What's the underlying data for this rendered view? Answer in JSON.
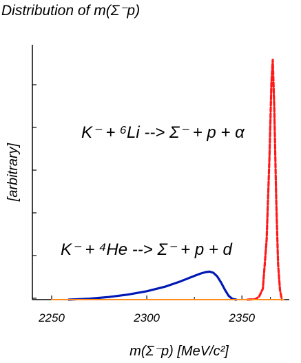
{
  "chart_data": {
    "type": "line",
    "title": "Distribution of  m(Σ⁻p)",
    "xlabel": "m(Σ⁻p)  [MeV/c²]",
    "ylabel": "[arbitrary]",
    "xlim": [
      2250,
      2372
    ],
    "ylim": [
      0,
      1.0
    ],
    "x_ticks": [
      2250,
      2300,
      2350
    ],
    "y_ticks_labeled": false,
    "grid": false,
    "annotations": [
      {
        "text": "K⁻ + ⁶Li --> Σ⁻ + p + α"
      },
      {
        "text": "K⁻ + ⁴He --> Σ⁻ + p + d"
      }
    ],
    "series": [
      {
        "label": "K⁻ + ⁴He --> Σ⁻ + p + d",
        "color": "#0018b4",
        "style": "solid",
        "x": [
          2259,
          2270,
          2280,
          2290,
          2300,
          2310,
          2318,
          2324,
          2328,
          2331,
          2333,
          2335,
          2337,
          2339,
          2341,
          2343,
          2345,
          2347
        ],
        "y": [
          0.0,
          0.004,
          0.011,
          0.021,
          0.035,
          0.055,
          0.077,
          0.096,
          0.108,
          0.115,
          0.117,
          0.112,
          0.097,
          0.072,
          0.042,
          0.016,
          0.003,
          0.0
        ]
      },
      {
        "label": "K⁻ + ⁶Li --> Σ⁻ + p + α",
        "color": "#ff1a1a",
        "style": "dashed",
        "x": [
          2353,
          2357,
          2359,
          2361,
          2363,
          2364.5,
          2365.5,
          2366.2,
          2367,
          2368,
          2369,
          2370,
          2371
        ],
        "y": [
          0.0,
          0.002,
          0.012,
          0.045,
          0.25,
          0.6,
          0.9,
          1.0,
          0.8,
          0.42,
          0.15,
          0.04,
          0.0
        ]
      },
      {
        "label": "baseline",
        "color": "#ff8c1a",
        "style": "solid",
        "x": [
          2250,
          2372
        ],
        "y": [
          0.0,
          0.0
        ]
      }
    ]
  }
}
